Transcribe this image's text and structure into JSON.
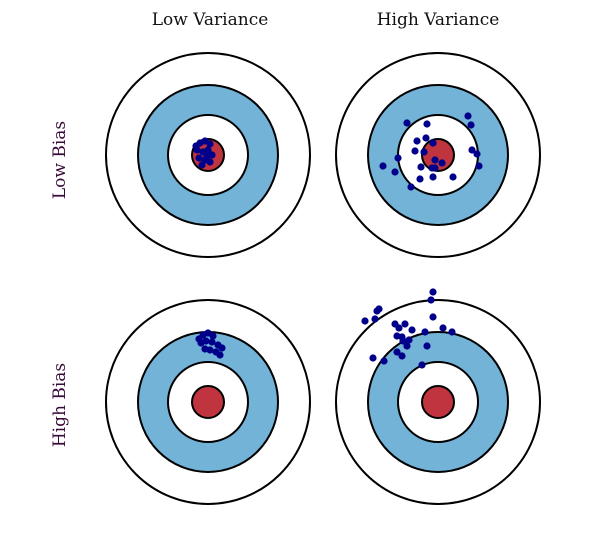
{
  "columns": [
    {
      "label": "Low Variance"
    },
    {
      "label": "High Variance"
    }
  ],
  "rows": [
    {
      "label": "Low Bias"
    },
    {
      "label": "High Bias"
    }
  ],
  "colors": {
    "ring_outline": "#000000",
    "outer_ring_fill": "#ffffff",
    "middle_ring_fill": "#74b3d8",
    "inner_ring_fill": "#ffffff",
    "bullseye_fill": "#c0343f",
    "dot_fill": "#00008b"
  },
  "panels": [
    {
      "bias": "Low Bias",
      "variance": "Low Variance"
    },
    {
      "bias": "Low Bias",
      "variance": "High Variance"
    },
    {
      "bias": "High Bias",
      "variance": "Low Variance"
    },
    {
      "bias": "High Bias",
      "variance": "High Variance"
    }
  ]
}
